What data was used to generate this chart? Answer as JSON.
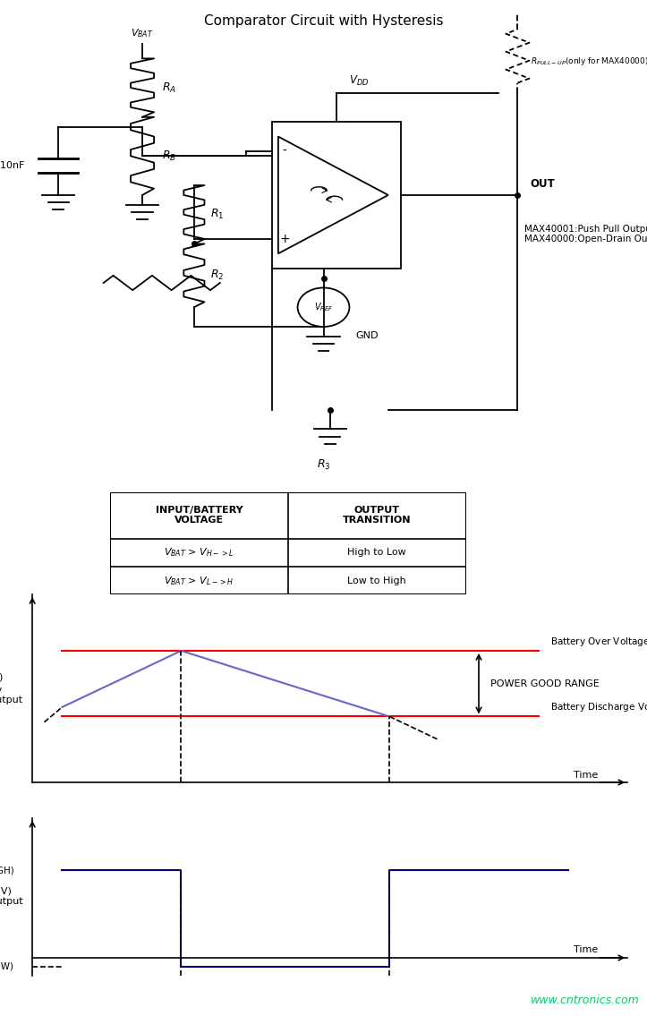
{
  "title": "Comparator Circuit with Hysteresis",
  "bg_color": "#ffffff",
  "circuit_title_fontsize": 11,
  "table_header_row1": [
    "INPUT/BATTERY\nVOLTAGE",
    "OUTPUT\nTRANSITION"
  ],
  "table_row1": [
    "V BAT > V H->L",
    "High to Low"
  ],
  "table_row2": [
    "V BAT > V L->H",
    "Low to High"
  ],
  "vbat_label": "V(OUT) (V)\nMonitor Output\nV(HIGH)",
  "time_label": "Time",
  "battery_over_label": "Battery Over Voltage (V H->L)",
  "battery_discharge_label": "Battery Discharge Voltage (V L->H)",
  "power_good_label": "POWER GOOD RANGE",
  "watermark": "www.cntronics.com",
  "watermark_color": "#00cc66"
}
